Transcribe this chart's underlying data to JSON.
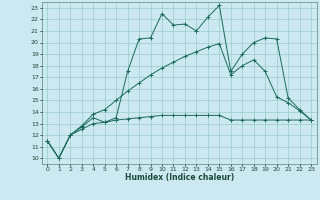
{
  "xlabel": "Humidex (Indice chaleur)",
  "bg_color": "#cce8f0",
  "grid_color": "#99cccc",
  "line_color": "#1a6b5a",
  "xlim": [
    -0.5,
    23.5
  ],
  "ylim": [
    9.5,
    23.5
  ],
  "xticks": [
    0,
    1,
    2,
    3,
    4,
    5,
    6,
    7,
    8,
    9,
    10,
    11,
    12,
    13,
    14,
    15,
    16,
    17,
    18,
    19,
    20,
    21,
    22,
    23
  ],
  "yticks": [
    10,
    11,
    12,
    13,
    14,
    15,
    16,
    17,
    18,
    19,
    20,
    21,
    22,
    23
  ],
  "series": [
    {
      "x": [
        0,
        1,
        2,
        3,
        4,
        5,
        6,
        7,
        8,
        9,
        10,
        11,
        12,
        13,
        14,
        15,
        16,
        17,
        18,
        19,
        20,
        21,
        22,
        23
      ],
      "y": [
        11.5,
        10,
        12,
        12.7,
        13.5,
        13.1,
        13.5,
        17.5,
        20.3,
        20.4,
        22.5,
        21.5,
        21.6,
        21.0,
        22.2,
        23.2,
        17.5,
        19.0,
        20.0,
        20.4,
        20.3,
        15.2,
        14.2,
        13.3
      ]
    },
    {
      "x": [
        0,
        1,
        2,
        3,
        4,
        5,
        6,
        7,
        8,
        9,
        10,
        11,
        12,
        13,
        14,
        15,
        16,
        17,
        18,
        19,
        20,
        21,
        22,
        23
      ],
      "y": [
        11.5,
        10,
        12,
        12.8,
        13.8,
        14.2,
        15.0,
        15.8,
        16.5,
        17.2,
        17.8,
        18.3,
        18.8,
        19.2,
        19.6,
        19.9,
        17.2,
        18.0,
        18.5,
        17.5,
        15.3,
        14.8,
        14.1,
        13.3
      ]
    },
    {
      "x": [
        0,
        1,
        2,
        3,
        4,
        5,
        6,
        7,
        8,
        9,
        10,
        11,
        12,
        13,
        14,
        15,
        16,
        17,
        18,
        19,
        20,
        21,
        22,
        23
      ],
      "y": [
        11.5,
        10,
        12,
        12.5,
        13.0,
        13.1,
        13.3,
        13.4,
        13.5,
        13.6,
        13.7,
        13.7,
        13.7,
        13.7,
        13.7,
        13.7,
        13.3,
        13.3,
        13.3,
        13.3,
        13.3,
        13.3,
        13.3,
        13.3
      ]
    }
  ]
}
